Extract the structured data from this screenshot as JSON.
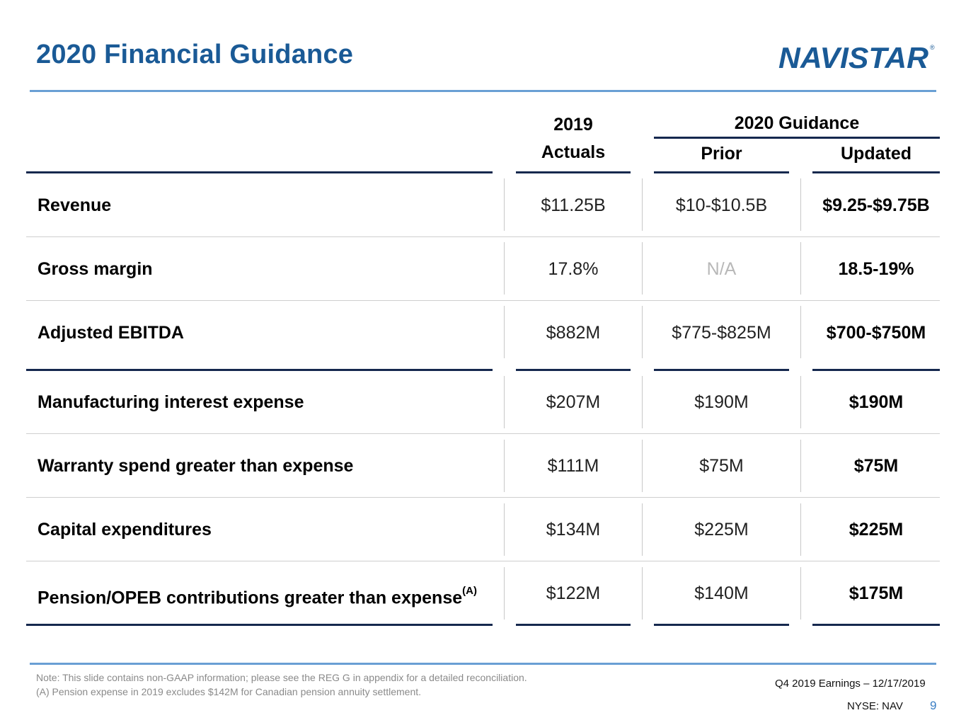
{
  "title": "2020 Financial Guidance",
  "logo": {
    "text": "NAVISTAR",
    "registered": "®",
    "color": "#1a5a96"
  },
  "header": {
    "actuals_year": "2019",
    "actuals_label": "Actuals",
    "guidance_label": "2020 Guidance",
    "prior_label": "Prior",
    "updated_label": "Updated"
  },
  "rows": [
    {
      "label": "Revenue",
      "sup": "",
      "actuals": "$11.25B",
      "prior": "$10-$10.5B",
      "updated": "$9.25-$9.75B"
    },
    {
      "label": "Gross margin",
      "sup": "",
      "actuals": "17.8%",
      "prior": "N/A",
      "updated": "18.5-19%"
    },
    {
      "label": "Adjusted EBITDA",
      "sup": "",
      "actuals": "$882M",
      "prior": "$775-$825M",
      "updated": "$700-$750M"
    },
    {
      "label": "Manufacturing interest expense",
      "sup": "",
      "actuals": "$207M",
      "prior": "$190M",
      "updated": "$190M"
    },
    {
      "label": "Warranty spend greater than expense",
      "sup": "",
      "actuals": "$111M",
      "prior": "$75M",
      "updated": "$75M"
    },
    {
      "label": "Capital expenditures",
      "sup": "",
      "actuals": "$134M",
      "prior": "$225M",
      "updated": "$225M"
    },
    {
      "label": "Pension/OPEB contributions greater than expense",
      "sup": "(A)",
      "actuals": "$122M",
      "prior": "$140M",
      "updated": "$175M"
    }
  ],
  "notes": {
    "line1": "Note: This slide contains non-GAAP information; please see the REG G in appendix for a detailed reconciliation.",
    "line2": "(A) Pension expense in 2019 excludes $142M for Canadian pension annuity settlement."
  },
  "footer": {
    "earnings": "Q4 2019 Earnings – 12/17/2019",
    "ticker": "NYSE: NAV",
    "page": "9"
  }
}
